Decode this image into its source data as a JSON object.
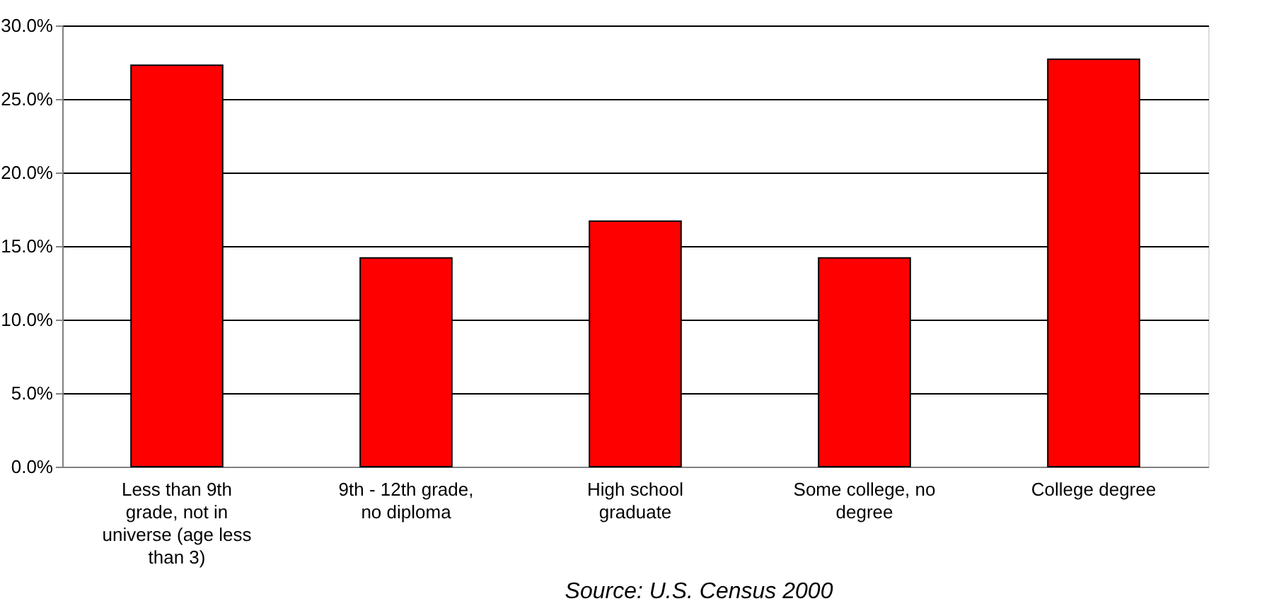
{
  "chart_data": {
    "type": "bar",
    "categories": [
      "Less than 9th grade, not in universe (age less than 3)",
      "9th - 12th grade, no diploma",
      "High school graduate",
      "Some college, no degree",
      "College degree"
    ],
    "values": [
      27.3,
      14.2,
      16.7,
      14.2,
      27.7
    ],
    "color": "#ff0000",
    "ylim": [
      0,
      30
    ],
    "yticks": [
      {
        "value": 0,
        "label": "0.0%"
      },
      {
        "value": 5,
        "label": "5.0%"
      },
      {
        "value": 10,
        "label": "10.0%"
      },
      {
        "value": 15,
        "label": "15.0%"
      },
      {
        "value": 20,
        "label": "20.0%"
      },
      {
        "value": 25,
        "label": "25.0%"
      },
      {
        "value": 30,
        "label": "30.0%"
      }
    ],
    "grid": "y",
    "annotations": [
      "Source:  U.S. Census 2000"
    ]
  }
}
